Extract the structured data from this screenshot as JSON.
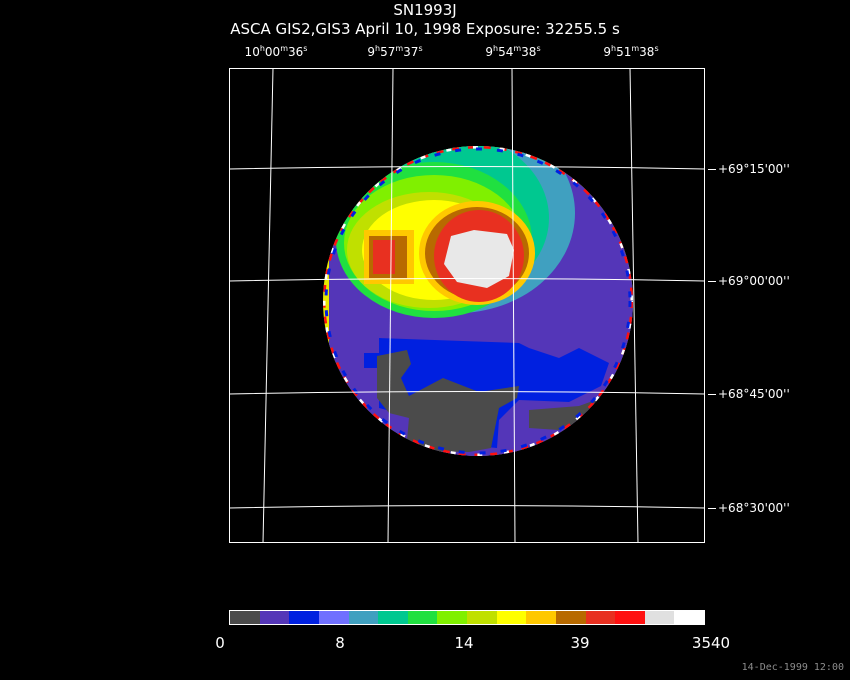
{
  "title": "SN1993J",
  "subtitle": "ASCA GIS2,GIS3 April 10, 1998 Exposure: 32255.5 s",
  "ra_labels": [
    {
      "h": "10",
      "m": "00",
      "s": "36"
    },
    {
      "h": "9",
      "m": "57",
      "s": "37"
    },
    {
      "h": "9",
      "m": "54",
      "s": "38"
    },
    {
      "h": "9",
      "m": "51",
      "s": "38"
    }
  ],
  "dec_labels": [
    "+69°15'00''",
    "+69°00'00''",
    "+68°45'00''",
    "+68°30'00''"
  ],
  "colorbar": {
    "colors": [
      "#4b4b4b",
      "#5436b8",
      "#0020e0",
      "#7070ff",
      "#40a0c0",
      "#00c890",
      "#20e040",
      "#80f000",
      "#c0e000",
      "#ffff00",
      "#ffc800",
      "#b86a00",
      "#e83020",
      "#ff1010",
      "#e0e0e0",
      "#ffffff"
    ],
    "tick_labels": [
      "0",
      "8",
      "14",
      "39",
      "3540"
    ]
  },
  "timestamp": "14-Dec-1999 12:00"
}
